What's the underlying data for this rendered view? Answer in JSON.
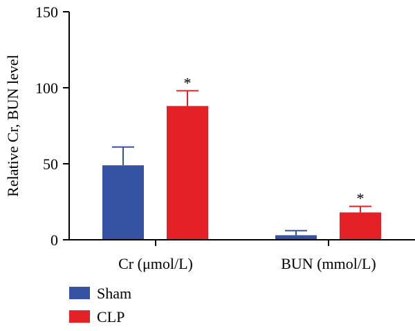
{
  "chart_data": {
    "type": "bar",
    "categories": [
      "Cr (μmol/L)",
      "BUN (mmol/L)"
    ],
    "series": [
      {
        "name": "Sham",
        "color": "#3652a3",
        "values": [
          49,
          3
        ],
        "error": [
          12,
          3
        ]
      },
      {
        "name": "CLP",
        "color": "#e42127",
        "values": [
          88,
          18
        ],
        "error": [
          10,
          4
        ]
      }
    ],
    "significance": [
      [
        "",
        "*"
      ],
      [
        "",
        "*"
      ]
    ],
    "ylabel": "Relative Cr, BUN level",
    "xlabel": "",
    "title": "",
    "ylim": [
      0,
      150
    ],
    "yticks": [
      0,
      50,
      100,
      150
    ],
    "grid": false,
    "legend_position": "bottom-left"
  }
}
